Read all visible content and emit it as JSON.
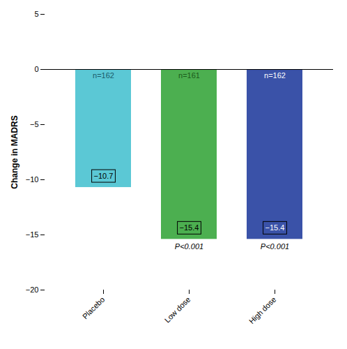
{
  "chart_data": {
    "type": "bar",
    "categories": [
      "Placebo",
      "Low dose",
      "High dose"
    ],
    "values": [
      -10.7,
      -15.4,
      -15.4
    ],
    "value_labels": [
      "−10.7",
      "−15.4",
      "−15.4"
    ],
    "data_labels": true,
    "colors": [
      "#5BC8D5",
      "#4CAF50",
      "#3A52A8"
    ],
    "ylabel": "Change in MADRS",
    "ylim": [
      -20,
      5
    ],
    "yticks": [
      {
        "value": -20,
        "label": "−20"
      },
      {
        "value": -15,
        "label": "−15"
      },
      {
        "value": -10,
        "label": "−10"
      },
      {
        "value": -5,
        "label": "−5"
      },
      0,
      5
    ],
    "grid": false,
    "annotations": [
      {
        "text": "n=162",
        "category": "Placebo",
        "color": "#1a5a6a",
        "anchor": "top"
      },
      {
        "text": "n=161",
        "category": "Low dose",
        "color": "#1a5a1a",
        "anchor": "top"
      },
      {
        "text": "n=162",
        "category": "High dose",
        "color": "white",
        "anchor": "top"
      },
      {
        "text": "P<0.001",
        "category": "Low dose",
        "anchor": "bar_end"
      },
      {
        "text": "P<0.001",
        "category": "High dose",
        "anchor": "bar_end"
      }
    ]
  }
}
